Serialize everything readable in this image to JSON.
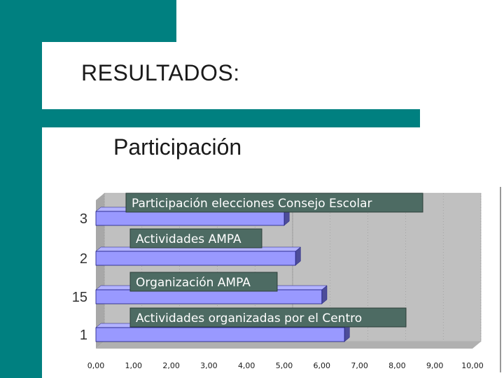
{
  "slide": {
    "title": "RESULTADOS:",
    "subtitle": "Participación"
  },
  "chart_data": {
    "type": "bar",
    "orientation": "horizontal",
    "categories": [
      "3",
      "2",
      "15",
      "1"
    ],
    "values": [
      5.0,
      5.3,
      6.0,
      6.6
    ],
    "bar_labels": [
      "Participación elecciones Consejo Escolar",
      "Actividades AMPA",
      "Organización AMPA",
      "Actividades organizadas por el Centro"
    ],
    "xlim": [
      0,
      10
    ],
    "x_ticks": [
      "0,00",
      "1,00",
      "2,00",
      "3,00",
      "4,00",
      "5,00",
      "6,00",
      "7,00",
      "8,00",
      "9,00",
      "10,00"
    ],
    "grid": true,
    "style": "3d",
    "colors": {
      "bar": "#9999ff",
      "bar_edge": "#1a1a80",
      "label_bg": "#4d6b63",
      "floor": "#c8c8c8"
    }
  }
}
